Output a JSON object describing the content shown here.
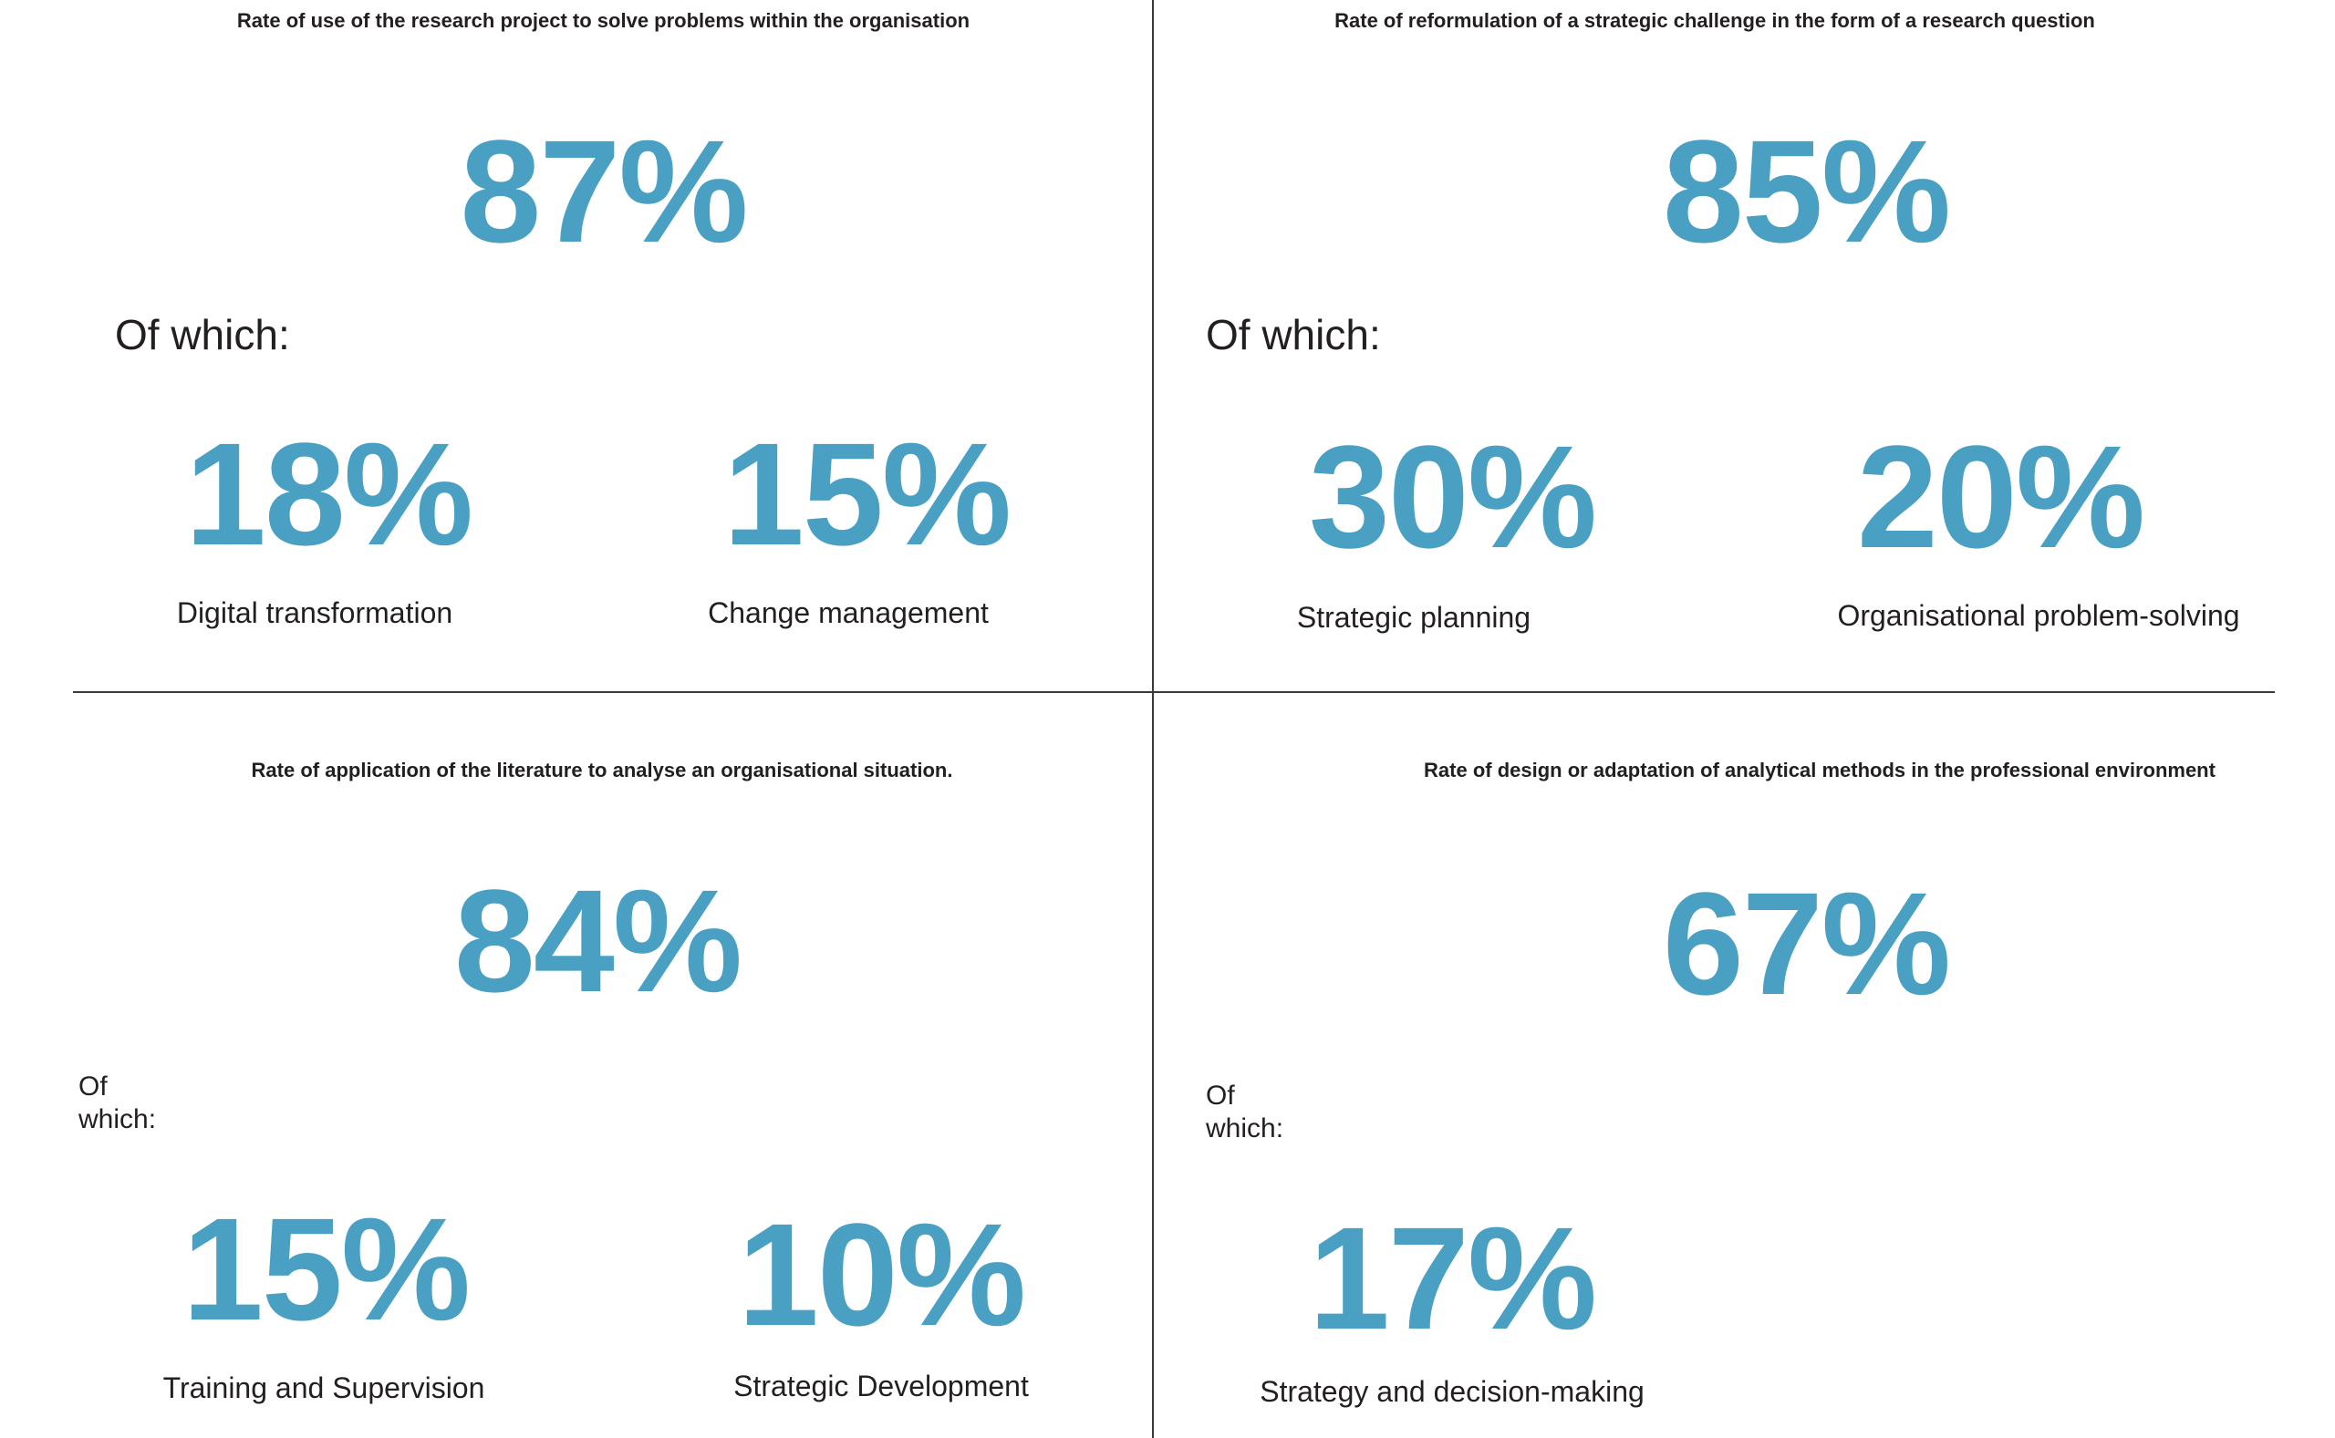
{
  "panels": [
    {
      "title": "Rate of use of the research project to solve problems within the organisation",
      "main_value": "87%",
      "of_which_line1": "Of which:",
      "items": [
        {
          "value": "18%",
          "label": "Digital transformation"
        },
        {
          "value": "15%",
          "label": "Change management"
        }
      ]
    },
    {
      "title": "Rate of reformulation of a strategic challenge in the form of a research question",
      "main_value": "85%",
      "of_which_line1": "Of which:",
      "items": [
        {
          "value": "30%",
          "label": "Strategic planning"
        },
        {
          "value": "20%",
          "label": "Organisational problem-solving"
        }
      ]
    },
    {
      "title": "Rate of application of the literature to analyse an organisational situation.",
      "main_value": "84%",
      "of_which_line1": "Of",
      "of_which_line2": "which:",
      "items": [
        {
          "value": "15%",
          "label": "Training and Supervision"
        },
        {
          "value": "10%",
          "label": "Strategic Development"
        }
      ]
    },
    {
      "title": "Rate of design or adaptation of analytical methods in the professional environment",
      "main_value": "67%",
      "of_which_line1": "Of",
      "of_which_line2": "which:",
      "items": [
        {
          "value": "17%",
          "label": "Strategy and decision-making"
        }
      ]
    }
  ],
  "colors": {
    "accent": "#4aa0c3",
    "text": "#231f20",
    "divider": "#3a3a3a"
  }
}
